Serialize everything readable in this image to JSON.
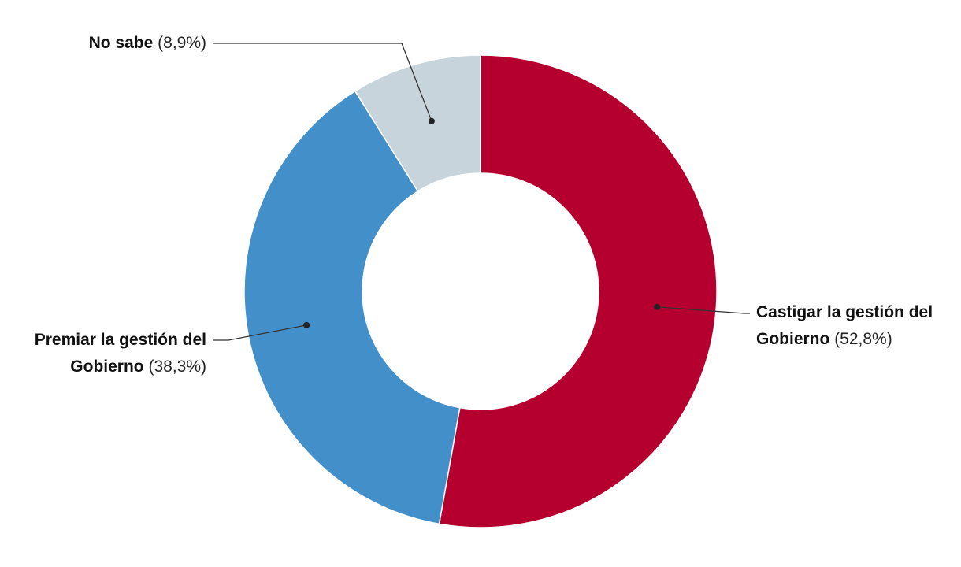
{
  "chart_data": {
    "type": "donut",
    "categories": [
      "Castigar la gestión del Gobierno",
      "Premiar la gestión del Gobierno",
      "No sabe"
    ],
    "values": [
      52.8,
      38.3,
      8.9
    ],
    "value_labels": [
      "(52,8%)",
      "(38,3%)",
      "(8,9%)"
    ],
    "colors": [
      "#b5002f",
      "#428fca",
      "#c8d4dc"
    ]
  }
}
